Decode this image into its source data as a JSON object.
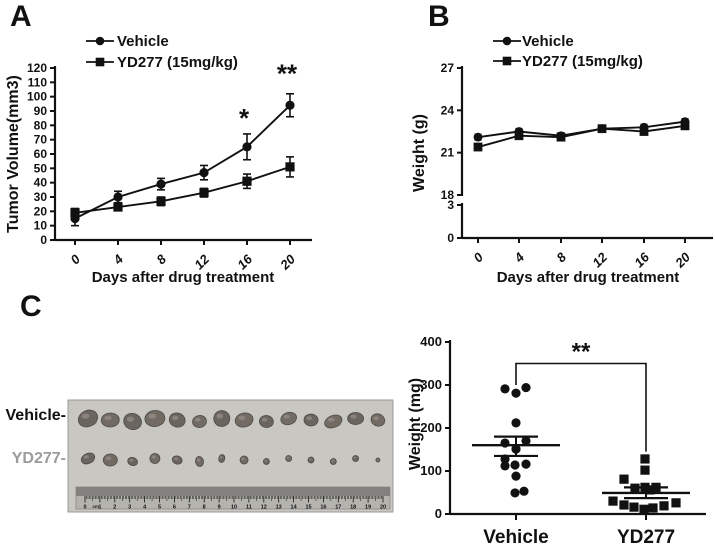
{
  "figure": {
    "ink": "#111111",
    "panel_labels": {
      "a": "A",
      "b": "B",
      "c": "C"
    }
  },
  "chart_data": [
    {
      "id": "tumor-volume-line",
      "panel": "A",
      "type": "line",
      "x": [
        0,
        4,
        8,
        12,
        16,
        20
      ],
      "xlabel": "Days after drug treatment",
      "ylabel": "Tumor Volume(mm3)",
      "ylim": [
        0,
        120
      ],
      "yticks": [
        0,
        10,
        20,
        30,
        40,
        50,
        60,
        70,
        80,
        90,
        100,
        110,
        120
      ],
      "legend_position": "top",
      "grid": false,
      "series": [
        {
          "name": "Vehicle",
          "marker": "circle",
          "values": [
            15,
            30,
            39,
            47,
            65,
            94
          ],
          "errors": [
            5,
            4,
            4,
            5,
            9,
            8
          ]
        },
        {
          "name": "YD277 (15mg/kg)",
          "marker": "square",
          "values": [
            19,
            23,
            27,
            33,
            41,
            51
          ],
          "errors": [
            3,
            2,
            3,
            3,
            5,
            7
          ]
        }
      ],
      "annotations": [
        {
          "text": "*",
          "day": 16,
          "value": 88
        },
        {
          "text": "**",
          "day": 20,
          "value": 119
        }
      ]
    },
    {
      "id": "body-weight-line",
      "panel": "B",
      "type": "line_broken_axis",
      "x": [
        0,
        4,
        8,
        12,
        16,
        20
      ],
      "xlabel": "Days after drug treatment",
      "ylabel": "Weight (g)",
      "upper_ticks": [
        18,
        21,
        24,
        27
      ],
      "lower_ticks": [
        0,
        3
      ],
      "grid": false,
      "series": [
        {
          "name": "Vehicle",
          "marker": "circle",
          "values": [
            22.1,
            22.5,
            22.2,
            22.7,
            22.8,
            23.2
          ],
          "errors": [
            0.2,
            0.2,
            0.2,
            0.2,
            0.2,
            0.2
          ]
        },
        {
          "name": "YD277 (15mg/kg)",
          "marker": "square",
          "values": [
            21.4,
            22.2,
            22.1,
            22.7,
            22.5,
            22.9
          ],
          "errors": [
            0.2,
            0.2,
            0.2,
            0.2,
            0.2,
            0.2
          ]
        }
      ]
    },
    {
      "id": "tumor-weight-scatter",
      "panel": "C",
      "type": "scatter",
      "ylabel": "Weight (mg)",
      "ylim": [
        0,
        400
      ],
      "yticks": [
        0,
        100,
        200,
        300,
        400
      ],
      "groups": [
        {
          "label": "Vehicle",
          "marker": "circle",
          "label_color": "#1a1a1a",
          "mean": 160,
          "err_low": 135,
          "err_high": 180,
          "values": [
            291,
            281,
            294,
            212,
            165,
            170,
            151,
            128,
            112,
            114,
            116,
            88,
            49,
            53
          ],
          "jitter": [
            -11,
            0,
            10,
            0,
            -11,
            10,
            0,
            -11,
            -11,
            -1,
            10,
            0,
            -1,
            8
          ]
        },
        {
          "label": "YD277",
          "marker": "square",
          "label_color": "#9b9b9b",
          "mean": 49,
          "err_low": 37,
          "err_high": 62,
          "values": [
            128,
            102,
            81,
            60,
            62,
            62,
            56,
            30,
            21,
            16,
            11,
            14,
            19,
            26
          ],
          "jitter": [
            -1,
            -1,
            -22,
            -11,
            -1,
            10,
            4,
            -33,
            -22,
            -12,
            -2,
            7,
            18,
            30
          ]
        }
      ],
      "significance": {
        "text": "**",
        "bar_value": 350,
        "left_drop_value": 300,
        "right_drop_value": 145
      }
    }
  ],
  "photo": {
    "bg": "#c8c7c2",
    "tumor_colors": [
      "#6b655f",
      "#716b64"
    ],
    "labels": [
      {
        "text": "Vehicle-",
        "color": "#111111"
      },
      {
        "text": "YD277-",
        "color": "#9b9b9b"
      }
    ],
    "ruler": {
      "unit": "cm",
      "numbers": [
        "0",
        "1",
        "2",
        "3",
        "4",
        "5",
        "6",
        "7",
        "8",
        "9",
        "10",
        "11",
        "12",
        "13",
        "14",
        "15",
        "16",
        "17",
        "18",
        "19",
        "20"
      ]
    },
    "tumor_rows": [
      {
        "name": "vehicle",
        "sizes": [
          [
            10,
            8
          ],
          [
            9,
            7
          ],
          [
            9,
            8
          ],
          [
            10,
            8
          ],
          [
            8,
            7
          ],
          [
            7,
            6
          ],
          [
            8,
            8
          ],
          [
            9,
            7
          ],
          [
            7,
            6
          ],
          [
            8,
            6
          ],
          [
            7,
            6
          ],
          [
            9,
            6
          ],
          [
            8,
            6
          ],
          [
            7,
            6
          ]
        ]
      },
      {
        "name": "yd277",
        "sizes": [
          [
            7,
            5
          ],
          [
            7,
            6
          ],
          [
            5,
            4
          ],
          [
            5,
            5
          ],
          [
            5,
            4
          ],
          [
            4,
            5
          ],
          [
            3,
            4
          ],
          [
            4,
            4
          ],
          [
            3,
            3
          ],
          [
            3,
            3
          ],
          [
            3,
            3
          ],
          [
            3,
            3
          ],
          [
            3,
            3
          ],
          [
            2,
            2
          ]
        ]
      }
    ]
  }
}
